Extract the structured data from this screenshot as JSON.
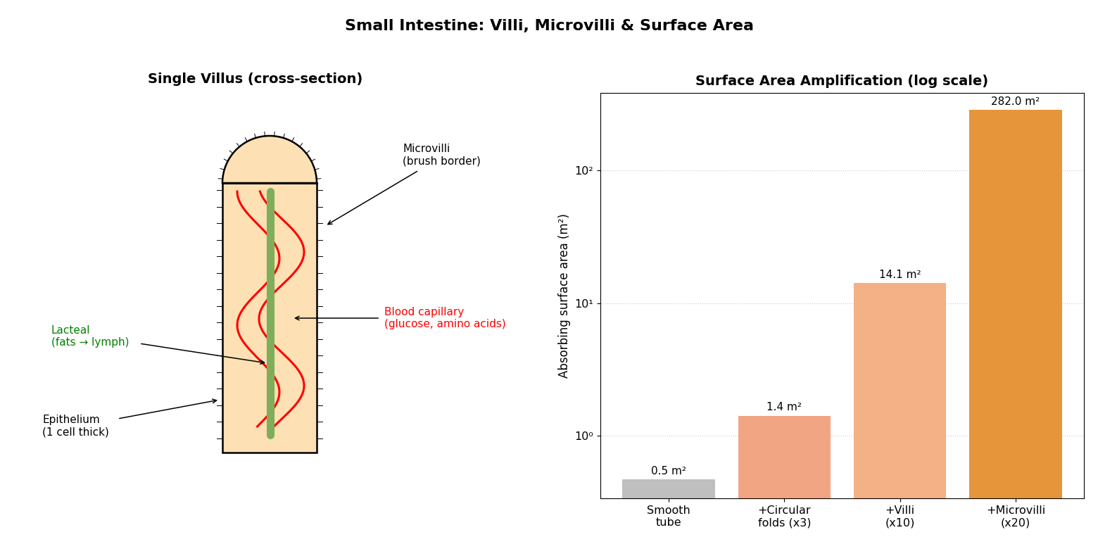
{
  "title": "Small Intestine: Villi, Microvilli & Surface Area",
  "diagram": {
    "title": "Single Villus (cross-section)",
    "labels": {
      "microvilli": {
        "text": "Microvilli\n(brush border)",
        "color": "black"
      },
      "capillary": {
        "text": "Blood capillary\n(glucose, amino acids)",
        "color": "red"
      },
      "lacteal": {
        "text": "Lacteal\n(fats → lymph)",
        "color": "green"
      },
      "epithelium": {
        "text": "Epithelium\n(1 cell thick)",
        "color": "black"
      }
    }
  },
  "chart_data": {
    "type": "bar",
    "title": "Surface Area Amplification (log scale)",
    "y_label": "Absorbing surface area (m²)",
    "categories": [
      "Smooth\ntube",
      "+Circular\nfolds (x3)",
      "+Villi\n(x10)",
      "+Microvilli\n(x20)"
    ],
    "values": [
      0.47,
      1.41,
      14.1,
      282.0
    ],
    "value_labels": [
      "0.5 m²",
      "1.4 m²",
      "14.1 m²",
      "282.0 m²"
    ],
    "data_labels": true,
    "colors": [
      "#bfbfbf",
      "#f2a582",
      "#f3b185",
      "#e6953a"
    ],
    "log": "y",
    "grid": true,
    "ylim": [
      0.34,
      380
    ],
    "yticks": [
      {
        "value": 1,
        "label": "10⁰"
      },
      {
        "value": 10,
        "label": "10¹"
      },
      {
        "value": 100,
        "label": "10²"
      }
    ]
  }
}
